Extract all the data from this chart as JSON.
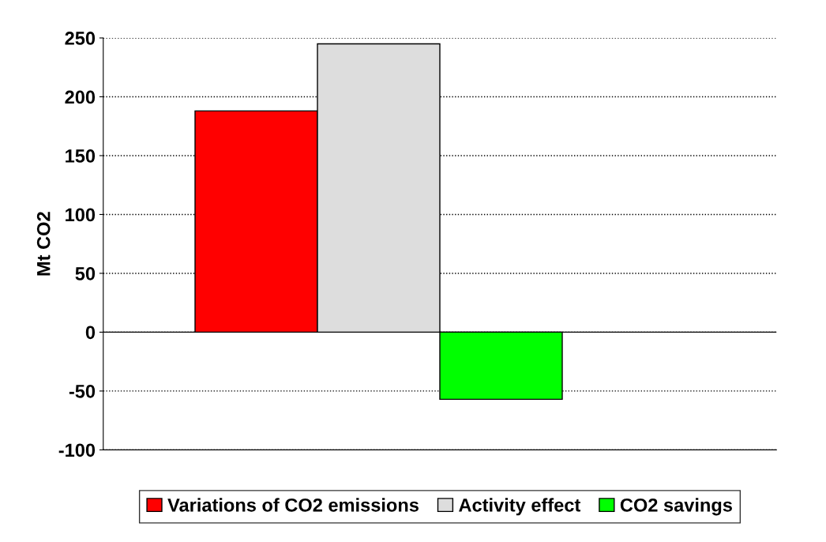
{
  "chart_data": {
    "type": "bar",
    "ylabel": "Mt CO2",
    "categories": [
      null
    ],
    "series": [
      {
        "name": "Variations of CO2 emissions",
        "color": "#ff0000",
        "values": [
          188
        ]
      },
      {
        "name": "Activity effect",
        "color": "#dddddd",
        "values": [
          245
        ]
      },
      {
        "name": "CO2 savings",
        "color": "#00ff00",
        "values": [
          -57
        ]
      }
    ],
    "ylim": [
      -100,
      250
    ],
    "yticks": [
      -100,
      -50,
      0,
      50,
      100,
      150,
      200,
      250
    ],
    "grid": "y",
    "legend": "bottom",
    "tick_labels": "y"
  }
}
